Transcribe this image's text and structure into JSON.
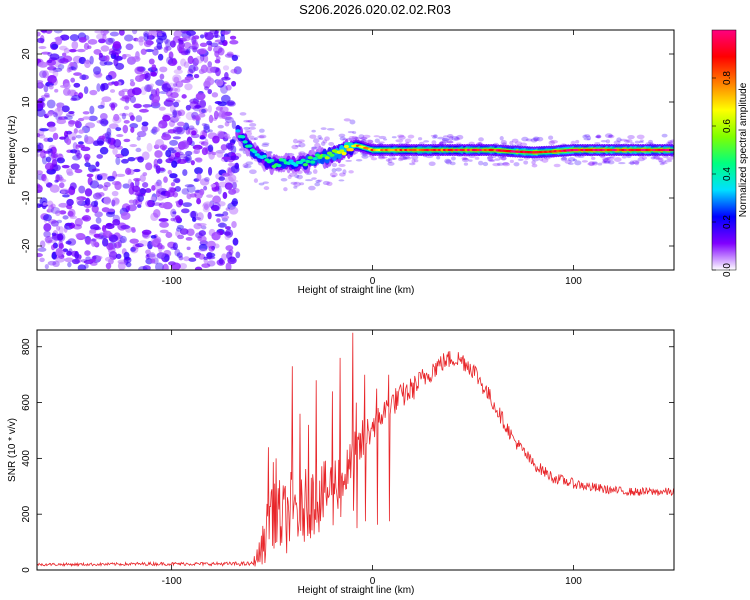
{
  "title": "S206.2026.020.02.02.R03",
  "chart_data": [
    {
      "type": "heatmap",
      "xlabel": "Height of straight line (km)",
      "ylabel": "Frequency (Hz)",
      "xlim": [
        -167,
        150
      ],
      "ylim": [
        -25,
        25
      ],
      "xticks": [
        -100,
        0,
        100
      ],
      "yticks": [
        -20,
        -10,
        0,
        10,
        20
      ],
      "colorbar": {
        "label": "Normalized spectral amplitude",
        "range": [
          0,
          1
        ],
        "ticks": [
          0.0,
          0.2,
          0.4,
          0.6,
          0.8
        ],
        "colors": [
          "#ffffff",
          "#8000ff",
          "#0000ff",
          "#00e0ff",
          "#00ff80",
          "#80ff00",
          "#ffff00",
          "#ff8000",
          "#ff0000",
          "#ff0080"
        ]
      },
      "noise_region": {
        "x": [
          -167,
          -67
        ],
        "level": 0.12
      },
      "ridge": {
        "x": [
          -67,
          -64,
          -60,
          -56,
          -52,
          -48,
          -44,
          -40,
          -36,
          -32,
          -28,
          -24,
          -20,
          -16,
          -12,
          -8,
          -4,
          0,
          10,
          20,
          40,
          60,
          70,
          80,
          90,
          100,
          120,
          150
        ],
        "freq": [
          4,
          2,
          0,
          -1.5,
          -2.5,
          -3,
          -2.5,
          -2.5,
          -3,
          -2.5,
          -1.5,
          -1.5,
          -1,
          -0.5,
          0.5,
          1,
          0.5,
          0,
          0,
          0,
          0,
          0,
          -0.3,
          -0.5,
          -0.3,
          0,
          0,
          0
        ],
        "amplitude": [
          0.35,
          0.4,
          0.4,
          0.35,
          0.4,
          0.45,
          0.4,
          0.35,
          0.4,
          0.45,
          0.45,
          0.5,
          0.55,
          0.6,
          0.7,
          0.75,
          0.7,
          0.75,
          0.8,
          0.85,
          0.85,
          0.9,
          0.9,
          0.95,
          0.92,
          0.95,
          0.95,
          0.95
        ]
      }
    },
    {
      "type": "line",
      "xlabel": "Height of straight line (km)",
      "ylabel": "SNR (10 * v/v)",
      "xlim": [
        -167,
        150
      ],
      "ylim": [
        0,
        860
      ],
      "xticks": [
        -100,
        0,
        100
      ],
      "yticks": [
        0,
        200,
        400,
        600,
        800
      ],
      "series": [
        {
          "color": "#e8262a",
          "x": [
            -167,
            -140,
            -110,
            -80,
            -60,
            -56,
            -52,
            -50,
            -48,
            -44,
            -42,
            -40,
            -38,
            -36,
            -32,
            -28,
            -24,
            -20,
            -16,
            -12,
            -10,
            -8,
            -4,
            0,
            5,
            10,
            20,
            30,
            35,
            40,
            45,
            50,
            60,
            70,
            80,
            90,
            100,
            110,
            120,
            130,
            140,
            150
          ],
          "y": [
            20,
            20,
            22,
            22,
            22,
            60,
            150,
            250,
            200,
            180,
            200,
            230,
            220,
            210,
            240,
            250,
            270,
            300,
            330,
            350,
            380,
            420,
            470,
            520,
            560,
            600,
            650,
            720,
            745,
            760,
            750,
            720,
            600,
            470,
            380,
            330,
            310,
            295,
            285,
            280,
            280,
            280
          ],
          "jitter": [
            5,
            5,
            6,
            6,
            8,
            50,
            120,
            160,
            140,
            130,
            140,
            150,
            140,
            140,
            130,
            130,
            120,
            110,
            110,
            100,
            100,
            90,
            80,
            60,
            50,
            50,
            45,
            40,
            35,
            35,
            35,
            35,
            30,
            25,
            22,
            20,
            18,
            18,
            15,
            15,
            15,
            15
          ],
          "spikes": [
            [
              -52,
              440
            ],
            [
              -48,
              400
            ],
            [
              -40,
              730
            ],
            [
              -36,
              560
            ],
            [
              -32,
              520
            ],
            [
              -28,
              680
            ],
            [
              -20,
              640
            ],
            [
              -16,
              760
            ],
            [
              -10,
              850
            ],
            [
              -8,
              600
            ],
            [
              -4,
              700
            ],
            [
              2,
              650
            ],
            [
              8,
              700
            ]
          ]
        }
      ]
    }
  ]
}
